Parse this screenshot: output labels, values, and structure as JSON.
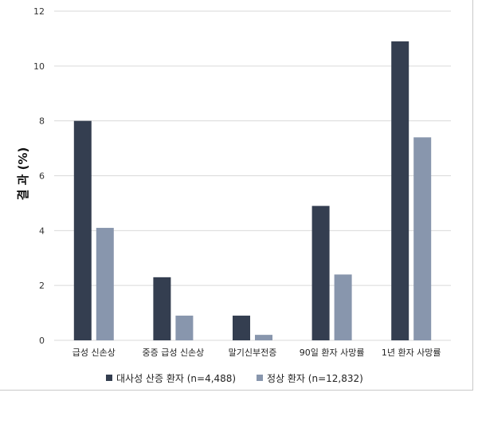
{
  "chart_data": {
    "type": "bar",
    "ylabel": "결 과 (%)",
    "xlabel": "",
    "ylim": [
      0,
      12
    ],
    "yticks": [
      0,
      2,
      4,
      6,
      8,
      10,
      12
    ],
    "grid": true,
    "legend_position": "bottom",
    "categories": [
      "급성 신손상",
      "중증 급성 신손상",
      "말기신부전증",
      "90일 환자 사망률",
      "1년 환자 사망률"
    ],
    "series": [
      {
        "name": "대사성 산증 환자 (n=4,488)",
        "color": "#343e50",
        "values": [
          8.0,
          2.3,
          0.9,
          4.9,
          10.9
        ]
      },
      {
        "name": "정상 환자 (n=12,832)",
        "color": "#8896ad",
        "values": [
          4.1,
          0.9,
          0.2,
          2.4,
          7.4
        ]
      }
    ]
  }
}
